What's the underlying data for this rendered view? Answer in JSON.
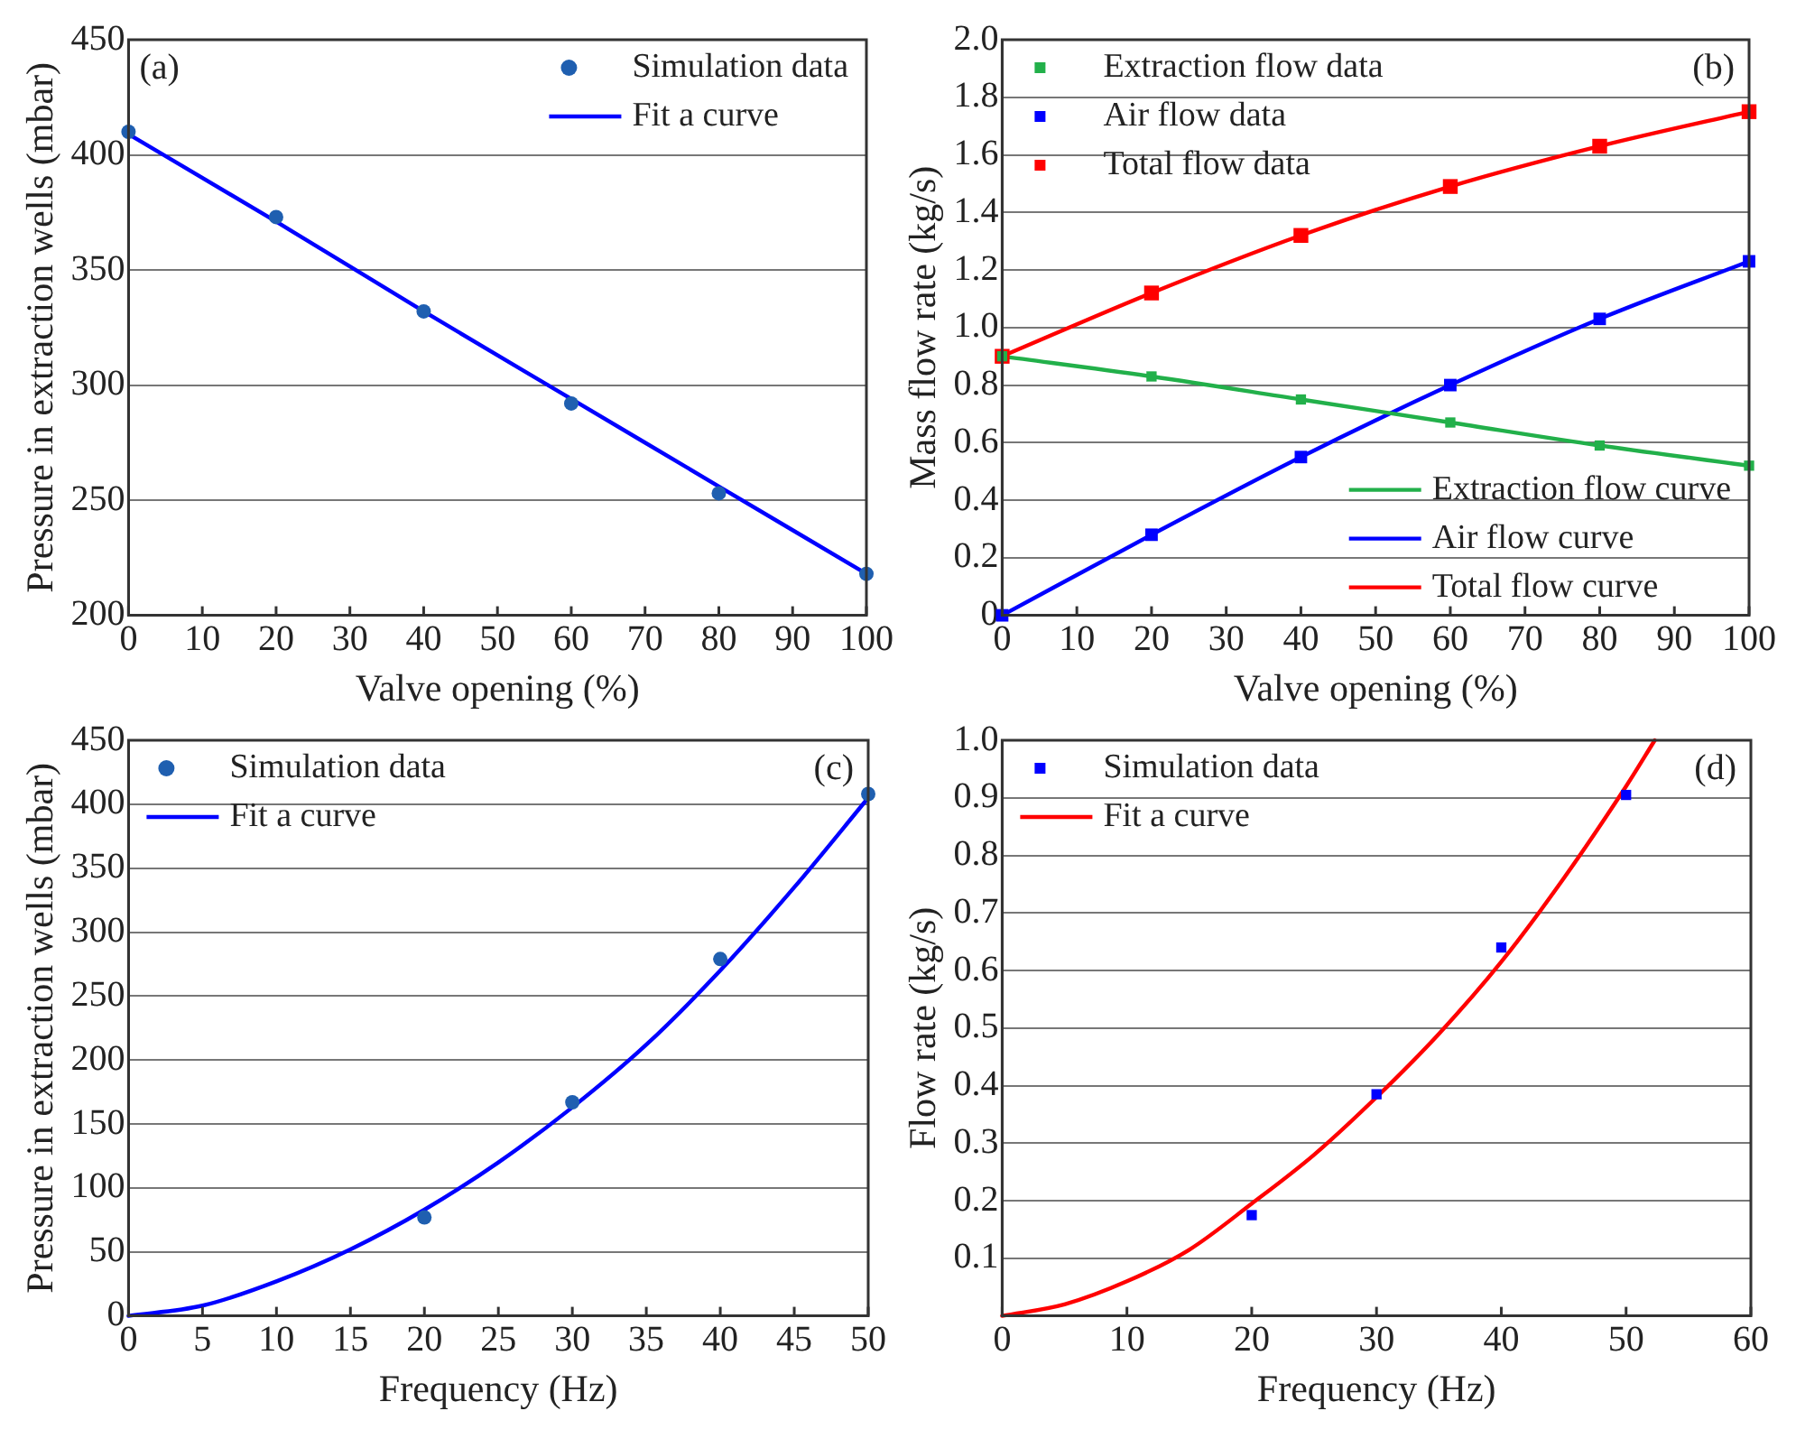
{
  "chart_data": [
    {
      "type": "scatter",
      "xlabel": "Valve opening (%)",
      "ylabel": "Pressure in extraction wells (mbar)",
      "annotations": [
        "(a)"
      ],
      "xlim": [
        0,
        100
      ],
      "xticks": [
        0,
        10,
        20,
        30,
        40,
        50,
        60,
        70,
        80,
        90,
        100
      ],
      "ylim": [
        200,
        450
      ],
      "yticks": [
        200,
        250,
        300,
        350,
        400,
        450
      ],
      "grid": "y",
      "legend": "top right",
      "series": [
        {
          "name": "Simulation data",
          "type": "scatter",
          "marker": "circle",
          "color": "#1f5fb0",
          "x": [
            0,
            20,
            40,
            60,
            80,
            100
          ],
          "values": [
            410,
            373,
            332,
            292,
            253,
            218
          ]
        },
        {
          "name": "Fit a curve",
          "type": "line",
          "marker": "none",
          "color": "#0000ff",
          "x": [
            0,
            20,
            40,
            60,
            80,
            100
          ],
          "values": [
            409,
            371,
            332,
            294,
            256,
            218
          ]
        }
      ]
    },
    {
      "type": "scatter",
      "xlabel": "Valve opening (%)",
      "ylabel": "Mass flow rate (kg/s)",
      "annotations": [
        "(b)"
      ],
      "xlim": [
        0,
        100
      ],
      "xticks": [
        0,
        10,
        20,
        30,
        40,
        50,
        60,
        70,
        80,
        90,
        100
      ],
      "ylim": [
        0,
        2
      ],
      "yticks": [
        0,
        {
          "value": 0.2,
          "label": "0.2"
        },
        {
          "value": 0.4,
          "label": "0.4"
        },
        {
          "value": 0.6,
          "label": "0.6"
        },
        {
          "value": 0.8,
          "label": "0.8"
        },
        {
          "value": 1,
          "label": "1.0"
        },
        {
          "value": 1.2,
          "label": "1.2"
        },
        {
          "value": 1.4,
          "label": "1.4"
        },
        {
          "value": 1.6,
          "label": "1.6"
        },
        {
          "value": 1.8,
          "label": "1.8"
        },
        {
          "value": 2,
          "label": "2.0"
        }
      ],
      "grid": "y",
      "legend": "top left",
      "series": [
        {
          "name": "Extraction flow data",
          "type": "scatter",
          "marker": "square",
          "color": "#22b04a",
          "x": [
            0,
            20,
            40,
            60,
            80,
            100
          ],
          "values": [
            0.9,
            0.83,
            0.75,
            0.67,
            0.59,
            0.52
          ]
        },
        {
          "name": "Air flow data",
          "type": "scatter",
          "marker": "square",
          "color": "#0000ff",
          "x": [
            0,
            20,
            40,
            60,
            80,
            100
          ],
          "values": [
            0,
            0.28,
            0.55,
            0.8,
            1.03,
            1.23
          ]
        },
        {
          "name": "Total flow data",
          "type": "scatter",
          "marker": "square",
          "color": "#ff0000",
          "x": [
            0,
            20,
            40,
            60,
            80,
            100
          ],
          "values": [
            0.9,
            1.12,
            1.32,
            1.49,
            1.63,
            1.75
          ]
        },
        {
          "name": "Extraction flow curve",
          "type": "line",
          "marker": "none",
          "color": "#22b04a",
          "x": [
            0,
            20,
            40,
            60,
            80,
            100
          ],
          "values": [
            0.9,
            0.83,
            0.75,
            0.67,
            0.59,
            0.52
          ]
        },
        {
          "name": "Air flow curve",
          "type": "line",
          "marker": "none",
          "color": "#0000ff",
          "x": [
            0,
            20,
            40,
            60,
            80,
            100
          ],
          "values": [
            0,
            0.28,
            0.55,
            0.8,
            1.03,
            1.23
          ]
        },
        {
          "name": "Total flow curve",
          "type": "line",
          "marker": "none",
          "color": "#ff0000",
          "x": [
            0,
            20,
            40,
            60,
            80,
            100
          ],
          "values": [
            0.9,
            1.12,
            1.32,
            1.49,
            1.63,
            1.75
          ]
        }
      ]
    },
    {
      "type": "scatter",
      "xlabel": "Frequency (Hz)",
      "ylabel": "Pressure in extraction wells (mbar)",
      "annotations": [
        "(c)"
      ],
      "xlim": [
        0,
        50
      ],
      "xticks": [
        0,
        5,
        10,
        15,
        20,
        25,
        30,
        35,
        40,
        45,
        50
      ],
      "ylim": [
        0,
        450
      ],
      "yticks": [
        0,
        50,
        100,
        150,
        200,
        250,
        300,
        350,
        400,
        450
      ],
      "grid": "y",
      "legend": "top left",
      "series": [
        {
          "name": "Simulation data",
          "type": "scatter",
          "marker": "circle",
          "color": "#1f5fb0",
          "x": [
            20,
            30,
            40,
            50
          ],
          "values": [
            77,
            167,
            279,
            408
          ]
        },
        {
          "name": "Fit a curve",
          "type": "line",
          "marker": "none",
          "color": "#0000ff",
          "x": [
            0,
            5,
            10,
            15,
            20,
            25,
            30,
            35,
            40,
            45,
            50
          ],
          "values": [
            0,
            8,
            27,
            52,
            83,
            120,
            163,
            212,
            270,
            335,
            405
          ]
        }
      ]
    },
    {
      "type": "scatter",
      "xlabel": "Frequency (Hz)",
      "ylabel": "Flow rate (kg/s)",
      "annotations": [
        "(d)"
      ],
      "xlim": [
        0,
        60
      ],
      "xticks": [
        0,
        10,
        20,
        30,
        40,
        50,
        60
      ],
      "ylim": [
        0,
        1
      ],
      "yticks": [
        0.1,
        0.2,
        0.3,
        0.4,
        0.5,
        0.6,
        0.7,
        0.8,
        0.9,
        {
          "value": 1,
          "label": "1.0"
        }
      ],
      "grid": "y",
      "legend": "top left",
      "series": [
        {
          "name": "Simulation data",
          "type": "scatter",
          "marker": "square",
          "color": "#0000ff",
          "x": [
            20,
            30,
            40,
            50
          ],
          "values": [
            0.175,
            0.385,
            0.64,
            0.905
          ]
        },
        {
          "name": "Fit a curve",
          "type": "line",
          "marker": "none",
          "color": "#ff0000",
          "x": [
            0,
            5,
            10,
            15,
            20,
            25,
            30,
            35,
            40,
            45,
            50,
            52.3
          ],
          "values": [
            0,
            0.02,
            0.06,
            0.115,
            0.195,
            0.28,
            0.38,
            0.49,
            0.615,
            0.76,
            0.92,
            1
          ]
        }
      ]
    }
  ]
}
